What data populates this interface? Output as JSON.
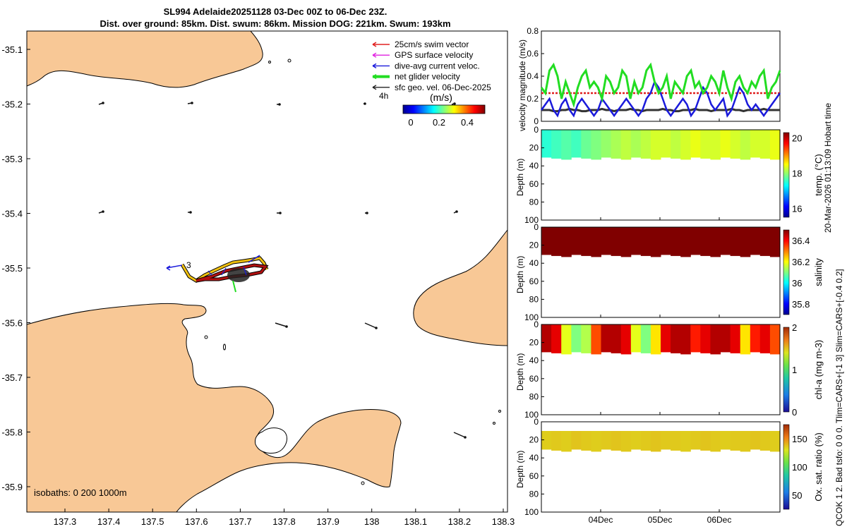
{
  "header": {
    "line1": "SL994 Adelaide20251128 03-Dec 00Z to 06-Dec 23Z.",
    "line2": "Dist. over ground: 85km. Dist. swum: 86km. Mission DOG: 221km. Swum: 193km"
  },
  "side_labels": {
    "timestamp": "20-Mar-2026 01:13:09 Hobart time",
    "settings": "QCOK 1  2. Bad tsfo: 0  0  0. Tlim=CARS+[-1 3] Slim=CARS+[-0.4 0.2]"
  },
  "map": {
    "x_ticks": [
      "137.3",
      "137.4",
      "137.5",
      "137.6",
      "137.7",
      "137.8",
      "137.9",
      "138",
      "138.1",
      "138.2",
      "138.3"
    ],
    "y_ticks": [
      "-35.1",
      "-35.2",
      "-35.3",
      "-35.4",
      "-35.5",
      "-35.6",
      "-35.7",
      "-35.8",
      "-35.9"
    ],
    "legend": [
      {
        "label": "25cm/s swim vector",
        "color": "#e02020"
      },
      {
        "label": "GPS surface velocity",
        "color": "#e020e0"
      },
      {
        "label": "dive-avg current veloc.",
        "color": "#1a1adb"
      },
      {
        "label": "net glider velocity",
        "color": "#22dd22"
      },
      {
        "label": "sfc geo. vel. 06-Dec-2025",
        "color": "#222222"
      }
    ],
    "legend_extra": "4h",
    "colorbar_label": "(m/s)",
    "colorbar_ticks": [
      "0",
      "0.2",
      "0.4"
    ],
    "track_label": "3",
    "isobaths_text": "isobaths: 0   200  1000m",
    "land_color": "#f8c896"
  },
  "chart_data": [
    {
      "type": "line",
      "title": "",
      "ylabel": "velocity magnitude (m/s)",
      "ylim": [
        0,
        0.8
      ],
      "y_ticks": [
        "0",
        "0.2",
        "0.4",
        "0.6",
        "0.8"
      ],
      "series": [
        {
          "name": "net glider velocity",
          "color": "#22dd22",
          "values": [
            0.3,
            0.25,
            0.45,
            0.5,
            0.4,
            0.2,
            0.35,
            0.25,
            0.15,
            0.3,
            0.4,
            0.45,
            0.3,
            0.35,
            0.3,
            0.2,
            0.4,
            0.35,
            0.25,
            0.3,
            0.45,
            0.4,
            0.2,
            0.35,
            0.25,
            0.3,
            0.45,
            0.5,
            0.35,
            0.25,
            0.3,
            0.4,
            0.2,
            0.35,
            0.3,
            0.25,
            0.4,
            0.45,
            0.3,
            0.35,
            0.25,
            0.3,
            0.4,
            0.35,
            0.25,
            0.45,
            0.3,
            0.2,
            0.35,
            0.4,
            0.3,
            0.25,
            0.35,
            0.3,
            0.4,
            0.45,
            0.2,
            0.3,
            0.35,
            0.45
          ]
        },
        {
          "name": "dive-avg current veloc.",
          "color": "#1a1adb",
          "values": [
            0.1,
            0.15,
            0.2,
            0.1,
            0.05,
            0.15,
            0.2,
            0.1,
            0.05,
            0.15,
            0.2,
            0.15,
            0.1,
            0.05,
            0.1,
            0.2,
            0.15,
            0.1,
            0.05,
            0.1,
            0.15,
            0.2,
            0.15,
            0.1,
            0.05,
            0.1,
            0.2,
            0.25,
            0.35,
            0.3,
            0.2,
            0.1,
            0.05,
            0.1,
            0.15,
            0.2,
            0.15,
            0.05,
            0.1,
            0.2,
            0.3,
            0.25,
            0.15,
            0.1,
            0.15,
            0.2,
            0.05,
            0.1,
            0.2,
            0.3,
            0.25,
            0.15,
            0.1,
            0.15,
            0.1,
            0.05,
            0.1,
            0.15,
            0.2,
            0.25
          ]
        },
        {
          "name": "25cm/s swim vector",
          "color": "#e02020",
          "values": [
            0.25,
            0.25,
            0.25,
            0.25,
            0.25,
            0.25,
            0.25,
            0.25,
            0.25,
            0.25,
            0.25,
            0.25,
            0.25,
            0.25,
            0.25,
            0.25,
            0.25,
            0.25,
            0.25,
            0.25,
            0.25,
            0.25,
            0.25,
            0.25,
            0.25,
            0.25,
            0.25,
            0.25,
            0.25,
            0.25,
            0.25,
            0.25,
            0.25,
            0.25,
            0.25,
            0.25,
            0.25,
            0.25,
            0.25,
            0.25,
            0.25,
            0.25,
            0.25,
            0.25,
            0.25,
            0.25,
            0.25,
            0.25,
            0.25,
            0.25,
            0.25,
            0.25,
            0.25,
            0.25,
            0.25,
            0.25,
            0.25,
            0.25,
            0.25,
            0.25
          ]
        },
        {
          "name": "sfc geo. vel.",
          "color": "#333333",
          "values": [
            0.1,
            0.1,
            0.1,
            0.09,
            0.09,
            0.1,
            0.1,
            0.11,
            0.1,
            0.1,
            0.09,
            0.09,
            0.1,
            0.1,
            0.1,
            0.11,
            0.1,
            0.1,
            0.09,
            0.1,
            0.1,
            0.1,
            0.11,
            0.1,
            0.1,
            0.09,
            0.1,
            0.1,
            0.1,
            0.1,
            0.11,
            0.1,
            0.1,
            0.09,
            0.09,
            0.1,
            0.1,
            0.1,
            0.11,
            0.1,
            0.1,
            0.1,
            0.09,
            0.1,
            0.1,
            0.1,
            0.1,
            0.11,
            0.1,
            0.1,
            0.09,
            0.1,
            0.1,
            0.1,
            0.1,
            0.11,
            0.1,
            0.1,
            0.1,
            0.1
          ]
        }
      ]
    },
    {
      "type": "heatmap",
      "ylabel": "Depth (m)",
      "colorbar_label": "temp. (°C)",
      "y_ticks": [
        "0",
        "20",
        "40",
        "60",
        "80",
        "100"
      ],
      "colorbar_ticks": [
        "20",
        "18",
        "16"
      ],
      "clim": [
        15.5,
        20.3
      ],
      "values": [
        17.5,
        17.6,
        17.7,
        17.6,
        17.8,
        17.9,
        18.0,
        18.1,
        18.2,
        18.1,
        18.2,
        18.3,
        18.3,
        18.2,
        18.3,
        18.4,
        18.3,
        18.3,
        18.4,
        18.3,
        18.2,
        18.3,
        18.3,
        18.4
      ]
    },
    {
      "type": "heatmap",
      "ylabel": "Depth (m)",
      "colorbar_label": "salinity",
      "y_ticks": [
        "0",
        "20",
        "40",
        "60",
        "80",
        "100"
      ],
      "colorbar_ticks": [
        "36.4",
        "36.2",
        "36",
        "35.8"
      ],
      "clim": [
        35.7,
        36.5
      ],
      "values": [
        36.5,
        36.5,
        36.5,
        36.5,
        36.5,
        36.5,
        36.5,
        36.5,
        36.5,
        36.5,
        36.5,
        36.5,
        36.5,
        36.5,
        36.5,
        36.5,
        36.5,
        36.5,
        36.5,
        36.5,
        36.5,
        36.5,
        36.5,
        36.5
      ]
    },
    {
      "type": "heatmap",
      "ylabel": "Depth (m)",
      "colorbar_label": "chl-a  (mg m-3)",
      "y_ticks": [
        "0",
        "20",
        "40",
        "60",
        "80",
        "100"
      ],
      "colorbar_ticks": [
        "2",
        "1",
        "0"
      ],
      "clim": [
        0,
        2
      ],
      "values": [
        1.9,
        1.8,
        1.2,
        1.0,
        1.1,
        1.6,
        1.9,
        1.9,
        1.8,
        1.2,
        1.0,
        1.3,
        1.8,
        1.9,
        1.9,
        1.7,
        1.8,
        1.9,
        1.9,
        1.8,
        1.3,
        1.7,
        1.8,
        1.6
      ]
    },
    {
      "type": "heatmap",
      "ylabel": "Depth (m)",
      "colorbar_label": "Ox. sat. ratio (%)",
      "y_ticks": [
        "0",
        "20",
        "40",
        "60",
        "80",
        "100"
      ],
      "colorbar_ticks": [
        "150",
        "100",
        "50"
      ],
      "clim": [
        25,
        175
      ],
      "values": [
        135,
        136,
        135,
        137,
        136,
        135,
        136,
        137,
        136,
        135,
        136,
        137,
        136,
        136,
        135,
        136,
        137,
        136,
        135,
        136,
        136,
        137,
        136,
        135
      ]
    }
  ],
  "time_axis": {
    "ticks": [
      "04Dec",
      "05Dec",
      "06Dec"
    ]
  }
}
